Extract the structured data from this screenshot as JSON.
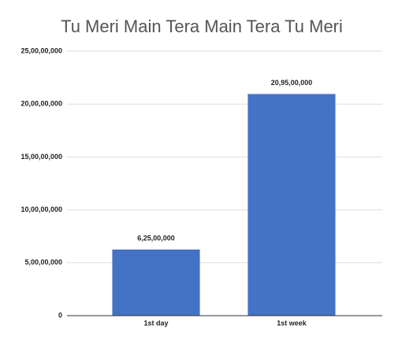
{
  "chart_data": {
    "type": "bar",
    "title": "Tu Meri Main Tera Main Tera Tu Meri",
    "categories": [
      "1st day",
      "1st week"
    ],
    "values": [
      62500000,
      209500000
    ],
    "value_labels": [
      "6,25,00,000",
      "20,95,00,000"
    ],
    "color": "#4472c4",
    "ylim": [
      0,
      250000000
    ],
    "yticks": [
      0,
      {
        "value": 50000000,
        "label": "5,00,00,000"
      },
      {
        "value": 100000000,
        "label": "10,00,00,000"
      },
      {
        "value": 150000000,
        "label": "15,00,00,000"
      },
      {
        "value": 200000000,
        "label": "20,00,00,000"
      },
      {
        "value": 250000000,
        "label": "25,00,00,000"
      }
    ],
    "grid": true
  }
}
